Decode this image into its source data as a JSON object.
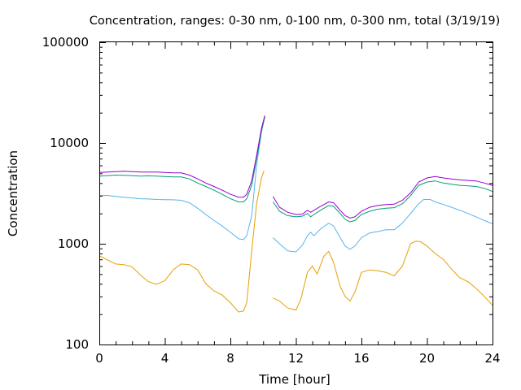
{
  "chart_data": {
    "type": "line",
    "title": "Concentration, ranges: 0-30 nm, 0-100 nm, 0-300 nm, total (3/19/19)",
    "xlabel": "Time [hour]",
    "ylabel": "Concentration",
    "xlim": [
      0,
      24
    ],
    "ylim": [
      100,
      100000
    ],
    "yscale": "log",
    "grid": false,
    "legend": "none",
    "x_ticks": [
      0,
      4,
      8,
      12,
      16,
      20,
      24
    ],
    "x_tick_labels": [
      "0",
      "4",
      "8",
      "12",
      "16",
      "20",
      "24"
    ],
    "y_ticks": [
      100,
      1000,
      10000,
      100000
    ],
    "y_tick_labels": [
      "100",
      "1000",
      "10000",
      "100000"
    ],
    "series": [
      {
        "color": "#e69f00",
        "segments": [
          [
            [
              0,
              760
            ],
            [
              0.5,
              690
            ],
            [
              1,
              630
            ],
            [
              1.5,
              620
            ],
            [
              2,
              590
            ],
            [
              2.5,
              490
            ],
            [
              3,
              420
            ],
            [
              3.5,
              395
            ],
            [
              4,
              430
            ],
            [
              4.5,
              550
            ],
            [
              5,
              630
            ],
            [
              5.5,
              620
            ],
            [
              6,
              550
            ],
            [
              6.5,
              400
            ],
            [
              7,
              340
            ],
            [
              7.5,
              310
            ],
            [
              8,
              260
            ],
            [
              8.5,
              210
            ],
            [
              8.8,
              215
            ],
            [
              9,
              260
            ],
            [
              9.3,
              850
            ],
            [
              9.6,
              2500
            ],
            [
              9.9,
              4500
            ],
            [
              10.05,
              5300
            ]
          ],
          [
            [
              10.6,
              290
            ],
            [
              11,
              270
            ],
            [
              11.5,
              230
            ],
            [
              12,
              220
            ],
            [
              12.3,
              280
            ],
            [
              12.7,
              520
            ],
            [
              13,
              600
            ],
            [
              13.3,
              500
            ],
            [
              13.7,
              750
            ],
            [
              14,
              840
            ],
            [
              14.3,
              650
            ],
            [
              14.7,
              380
            ],
            [
              15,
              300
            ],
            [
              15.3,
              270
            ],
            [
              15.6,
              330
            ],
            [
              16,
              520
            ],
            [
              16.5,
              550
            ],
            [
              17,
              540
            ],
            [
              17.5,
              520
            ],
            [
              18,
              480
            ],
            [
              18.5,
              600
            ],
            [
              19,
              1000
            ],
            [
              19.3,
              1060
            ],
            [
              19.6,
              1050
            ],
            [
              20,
              950
            ],
            [
              20.5,
              800
            ],
            [
              21,
              700
            ],
            [
              21.5,
              560
            ],
            [
              22,
              460
            ],
            [
              22.5,
              420
            ],
            [
              23,
              360
            ],
            [
              23.5,
              300
            ],
            [
              24,
              245
            ]
          ]
        ]
      },
      {
        "color": "#56b4e9",
        "segments": [
          [
            [
              0,
              3000
            ],
            [
              0.5,
              3020
            ],
            [
              1,
              2950
            ],
            [
              1.5,
              2900
            ],
            [
              2,
              2850
            ],
            [
              2.5,
              2800
            ],
            [
              3,
              2780
            ],
            [
              3.5,
              2750
            ],
            [
              4,
              2740
            ],
            [
              4.5,
              2730
            ],
            [
              5,
              2700
            ],
            [
              5.5,
              2550
            ],
            [
              6,
              2250
            ],
            [
              6.5,
              1950
            ],
            [
              7,
              1700
            ],
            [
              7.5,
              1500
            ],
            [
              8,
              1300
            ],
            [
              8.5,
              1120
            ],
            [
              8.8,
              1100
            ],
            [
              9,
              1200
            ],
            [
              9.3,
              1900
            ],
            [
              9.6,
              6000
            ],
            [
              9.9,
              13000
            ],
            [
              10.1,
              18500
            ]
          ],
          [
            [
              10.6,
              1150
            ],
            [
              11,
              1000
            ],
            [
              11.5,
              850
            ],
            [
              12,
              830
            ],
            [
              12.4,
              970
            ],
            [
              12.7,
              1200
            ],
            [
              12.9,
              1300
            ],
            [
              13.1,
              1200
            ],
            [
              13.5,
              1400
            ],
            [
              14,
              1600
            ],
            [
              14.3,
              1500
            ],
            [
              14.7,
              1150
            ],
            [
              15,
              950
            ],
            [
              15.3,
              880
            ],
            [
              15.6,
              950
            ],
            [
              16,
              1150
            ],
            [
              16.5,
              1280
            ],
            [
              17,
              1320
            ],
            [
              17.5,
              1380
            ],
            [
              18,
              1380
            ],
            [
              18.5,
              1600
            ],
            [
              19,
              2000
            ],
            [
              19.5,
              2500
            ],
            [
              19.8,
              2750
            ],
            [
              20.2,
              2750
            ],
            [
              20.5,
              2600
            ],
            [
              21,
              2450
            ],
            [
              21.5,
              2300
            ],
            [
              22,
              2150
            ],
            [
              22.5,
              2000
            ],
            [
              23,
              1850
            ],
            [
              23.5,
              1700
            ],
            [
              24,
              1580
            ]
          ]
        ]
      },
      {
        "color": "#009e73",
        "segments": [
          [
            [
              0,
              4700
            ],
            [
              0.5,
              4750
            ],
            [
              1,
              4800
            ],
            [
              1.5,
              4780
            ],
            [
              2,
              4750
            ],
            [
              2.5,
              4700
            ],
            [
              3,
              4720
            ],
            [
              3.5,
              4700
            ],
            [
              4,
              4650
            ],
            [
              4.5,
              4600
            ],
            [
              5,
              4600
            ],
            [
              5.5,
              4400
            ],
            [
              6,
              4000
            ],
            [
              6.5,
              3700
            ],
            [
              7,
              3400
            ],
            [
              7.5,
              3100
            ],
            [
              8,
              2800
            ],
            [
              8.5,
              2600
            ],
            [
              8.8,
              2600
            ],
            [
              9,
              2800
            ],
            [
              9.3,
              3800
            ],
            [
              9.6,
              7000
            ],
            [
              9.9,
              13000
            ],
            [
              10.1,
              18200
            ]
          ],
          [
            [
              10.6,
              2600
            ],
            [
              11,
              2100
            ],
            [
              11.5,
              1900
            ],
            [
              12,
              1850
            ],
            [
              12.4,
              1880
            ],
            [
              12.7,
              2000
            ],
            [
              12.9,
              1850
            ],
            [
              13.1,
              1950
            ],
            [
              13.5,
              2150
            ],
            [
              14,
              2400
            ],
            [
              14.3,
              2350
            ],
            [
              14.7,
              2000
            ],
            [
              15,
              1750
            ],
            [
              15.3,
              1650
            ],
            [
              15.6,
              1700
            ],
            [
              16,
              1950
            ],
            [
              16.5,
              2100
            ],
            [
              17,
              2200
            ],
            [
              17.5,
              2250
            ],
            [
              18,
              2280
            ],
            [
              18.5,
              2500
            ],
            [
              19,
              3000
            ],
            [
              19.5,
              3800
            ],
            [
              20,
              4100
            ],
            [
              20.5,
              4200
            ],
            [
              21,
              4000
            ],
            [
              21.5,
              3900
            ],
            [
              22,
              3800
            ],
            [
              22.5,
              3750
            ],
            [
              23,
              3700
            ],
            [
              23.5,
              3550
            ],
            [
              24,
              3300
            ]
          ]
        ]
      },
      {
        "color": "#9400d3",
        "segments": [
          [
            [
              0,
              5100
            ],
            [
              0.5,
              5150
            ],
            [
              1,
              5200
            ],
            [
              1.5,
              5250
            ],
            [
              2,
              5200
            ],
            [
              2.5,
              5150
            ],
            [
              3,
              5150
            ],
            [
              3.5,
              5150
            ],
            [
              4,
              5100
            ],
            [
              4.5,
              5050
            ],
            [
              5,
              5050
            ],
            [
              5.5,
              4800
            ],
            [
              6,
              4400
            ],
            [
              6.5,
              4000
            ],
            [
              7,
              3700
            ],
            [
              7.5,
              3400
            ],
            [
              8,
              3100
            ],
            [
              8.5,
              2900
            ],
            [
              8.8,
              2900
            ],
            [
              9,
              3100
            ],
            [
              9.3,
              4200
            ],
            [
              9.6,
              7500
            ],
            [
              9.9,
              14000
            ],
            [
              10.1,
              18700
            ]
          ],
          [
            [
              10.6,
              2950
            ],
            [
              11,
              2300
            ],
            [
              11.5,
              2050
            ],
            [
              12,
              1950
            ],
            [
              12.4,
              1970
            ],
            [
              12.7,
              2150
            ],
            [
              12.9,
              2050
            ],
            [
              13.1,
              2150
            ],
            [
              13.5,
              2350
            ],
            [
              14,
              2600
            ],
            [
              14.3,
              2550
            ],
            [
              14.7,
              2150
            ],
            [
              15,
              1900
            ],
            [
              15.3,
              1800
            ],
            [
              15.6,
              1850
            ],
            [
              16,
              2100
            ],
            [
              16.5,
              2300
            ],
            [
              17,
              2400
            ],
            [
              17.5,
              2450
            ],
            [
              18,
              2470
            ],
            [
              18.5,
              2700
            ],
            [
              19,
              3200
            ],
            [
              19.5,
              4100
            ],
            [
              20,
              4500
            ],
            [
              20.5,
              4650
            ],
            [
              21,
              4500
            ],
            [
              21.5,
              4400
            ],
            [
              22,
              4300
            ],
            [
              22.5,
              4250
            ],
            [
              23,
              4200
            ],
            [
              23.5,
              4000
            ],
            [
              24,
              3800
            ]
          ]
        ]
      }
    ]
  }
}
